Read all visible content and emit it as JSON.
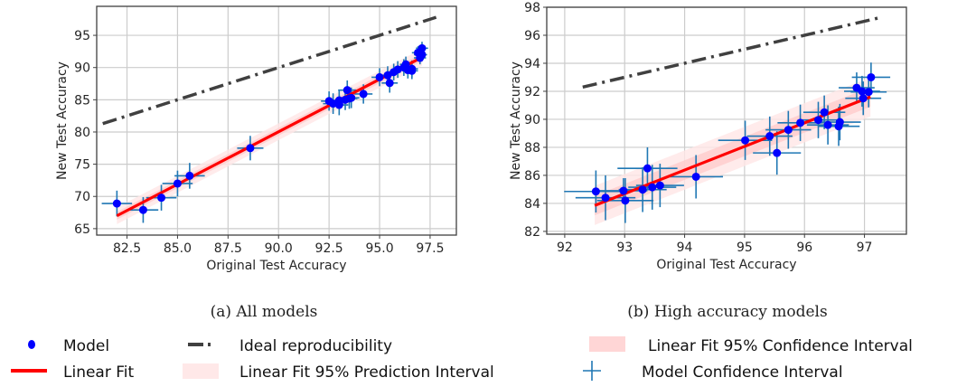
{
  "chart_data": [
    {
      "type": "scatter",
      "panel": "a",
      "caption": "(a) All models",
      "xlabel": "Original Test Accuracy",
      "ylabel": "New Test Accuracy",
      "xlim": [
        81.0,
        98.8
      ],
      "ylim": [
        64.0,
        99.5
      ],
      "xticks": [
        82.5,
        85.0,
        87.5,
        90.0,
        92.5,
        95.0,
        97.5
      ],
      "xtick_labels": [
        "82.5",
        "85.0",
        "87.5",
        "90.0",
        "92.5",
        "95.0",
        "97.5"
      ],
      "yticks": [
        65,
        70,
        75,
        80,
        85,
        90,
        95
      ],
      "ytick_labels": [
        "65",
        "70",
        "75",
        "80",
        "85",
        "90",
        "95"
      ],
      "grid": true,
      "ideal_line": {
        "x": [
          81.3,
          97.8
        ],
        "y": [
          81.3,
          97.8
        ]
      },
      "linear_fit": {
        "x": [
          82.0,
          97.1
        ],
        "y": [
          67.0,
          91.6
        ]
      },
      "prediction_band_halfwidth": 1.3,
      "confidence_band_halfwidth": 0.6,
      "points": [
        {
          "x": 82.0,
          "y": 68.9,
          "xerr": 0.75,
          "yerr": 2.0
        },
        {
          "x": 83.3,
          "y": 67.9,
          "xerr": 0.75,
          "yerr": 2.0
        },
        {
          "x": 84.2,
          "y": 69.8,
          "xerr": 0.75,
          "yerr": 2.0
        },
        {
          "x": 85.0,
          "y": 72.0,
          "xerr": 0.75,
          "yerr": 2.0
        },
        {
          "x": 85.6,
          "y": 73.2,
          "xerr": 0.75,
          "yerr": 2.0
        },
        {
          "x": 88.6,
          "y": 77.5,
          "xerr": 0.65,
          "yerr": 1.9
        },
        {
          "x": 92.5,
          "y": 84.8,
          "xerr": 0.4,
          "yerr": 1.5
        },
        {
          "x": 92.7,
          "y": 84.4,
          "xerr": 0.5,
          "yerr": 1.6
        },
        {
          "x": 93.0,
          "y": 84.9,
          "xerr": 0.45,
          "yerr": 1.5
        },
        {
          "x": 93.0,
          "y": 84.2,
          "xerr": 0.45,
          "yerr": 1.6
        },
        {
          "x": 93.3,
          "y": 85.0,
          "xerr": 0.4,
          "yerr": 1.6
        },
        {
          "x": 93.4,
          "y": 86.5,
          "xerr": 0.45,
          "yerr": 1.5
        },
        {
          "x": 93.5,
          "y": 85.2,
          "xerr": 0.4,
          "yerr": 1.6
        },
        {
          "x": 93.6,
          "y": 85.3,
          "xerr": 0.4,
          "yerr": 1.6
        },
        {
          "x": 94.2,
          "y": 85.9,
          "xerr": 0.45,
          "yerr": 1.5
        },
        {
          "x": 95.0,
          "y": 88.5,
          "xerr": 0.4,
          "yerr": 1.4
        },
        {
          "x": 95.4,
          "y": 88.8,
          "xerr": 0.35,
          "yerr": 1.4
        },
        {
          "x": 95.5,
          "y": 87.6,
          "xerr": 0.4,
          "yerr": 1.5
        },
        {
          "x": 95.7,
          "y": 89.3,
          "xerr": 0.35,
          "yerr": 1.3
        },
        {
          "x": 95.9,
          "y": 89.7,
          "xerr": 0.3,
          "yerr": 1.3
        },
        {
          "x": 96.2,
          "y": 90.0,
          "xerr": 0.3,
          "yerr": 1.3
        },
        {
          "x": 96.3,
          "y": 90.5,
          "xerr": 0.3,
          "yerr": 1.2
        },
        {
          "x": 96.4,
          "y": 89.6,
          "xerr": 0.3,
          "yerr": 1.3
        },
        {
          "x": 96.6,
          "y": 89.5,
          "xerr": 0.3,
          "yerr": 1.3
        },
        {
          "x": 96.6,
          "y": 89.8,
          "xerr": 0.3,
          "yerr": 1.3
        },
        {
          "x": 96.9,
          "y": 92.3,
          "xerr": 0.3,
          "yerr": 1.0
        },
        {
          "x": 97.0,
          "y": 92.0,
          "xerr": 0.3,
          "yerr": 1.0
        },
        {
          "x": 97.0,
          "y": 91.5,
          "xerr": 0.3,
          "yerr": 1.0
        },
        {
          "x": 97.1,
          "y": 92.0,
          "xerr": 0.25,
          "yerr": 1.0
        },
        {
          "x": 97.1,
          "y": 93.0,
          "xerr": 0.3,
          "yerr": 1.0
        }
      ]
    },
    {
      "type": "scatter",
      "panel": "b",
      "caption": "(b) High accuracy models",
      "xlabel": "Original Test Accuracy",
      "ylabel": "New Test Accuracy",
      "xlim": [
        91.7,
        97.7
      ],
      "ylim": [
        81.8,
        98.0
      ],
      "xticks": [
        92,
        93,
        94,
        95,
        96,
        97
      ],
      "xtick_labels": [
        "92",
        "93",
        "94",
        "95",
        "96",
        "97"
      ],
      "yticks": [
        82,
        84,
        86,
        88,
        90,
        92,
        94,
        96,
        98
      ],
      "ytick_labels": [
        "82",
        "84",
        "86",
        "88",
        "90",
        "92",
        "94",
        "96",
        "98"
      ],
      "grid": true,
      "ideal_line": {
        "x": [
          92.3,
          97.3
        ],
        "y": [
          92.3,
          97.3
        ]
      },
      "linear_fit": {
        "x": [
          92.5,
          97.1
        ],
        "y": [
          83.85,
          91.6
        ]
      },
      "prediction_band_halfwidth": 1.4,
      "confidence_band_halfwidth": 0.7,
      "points": [
        {
          "x": 92.52,
          "y": 84.85,
          "xerr": 0.53,
          "yerr": 1.5
        },
        {
          "x": 92.68,
          "y": 84.4,
          "xerr": 0.5,
          "yerr": 1.6
        },
        {
          "x": 92.98,
          "y": 84.9,
          "xerr": 0.4,
          "yerr": 0.9
        },
        {
          "x": 93.01,
          "y": 84.2,
          "xerr": 0.47,
          "yerr": 1.6
        },
        {
          "x": 93.3,
          "y": 84.98,
          "xerr": 0.4,
          "yerr": 1.6
        },
        {
          "x": 93.38,
          "y": 86.5,
          "xerr": 0.5,
          "yerr": 1.5
        },
        {
          "x": 93.46,
          "y": 85.15,
          "xerr": 0.4,
          "yerr": 1.6
        },
        {
          "x": 93.59,
          "y": 85.28,
          "xerr": 0.4,
          "yerr": 1.55
        },
        {
          "x": 94.19,
          "y": 85.9,
          "xerr": 0.45,
          "yerr": 1.55
        },
        {
          "x": 95.01,
          "y": 88.5,
          "xerr": 0.45,
          "yerr": 1.4
        },
        {
          "x": 95.42,
          "y": 88.8,
          "xerr": 0.38,
          "yerr": 1.4
        },
        {
          "x": 95.54,
          "y": 87.6,
          "xerr": 0.4,
          "yerr": 1.55
        },
        {
          "x": 95.73,
          "y": 89.25,
          "xerr": 0.38,
          "yerr": 1.35
        },
        {
          "x": 95.93,
          "y": 89.75,
          "xerr": 0.38,
          "yerr": 1.3
        },
        {
          "x": 96.23,
          "y": 89.95,
          "xerr": 0.33,
          "yerr": 1.3
        },
        {
          "x": 96.33,
          "y": 90.5,
          "xerr": 0.35,
          "yerr": 1.2
        },
        {
          "x": 96.39,
          "y": 89.6,
          "xerr": 0.35,
          "yerr": 1.4
        },
        {
          "x": 96.57,
          "y": 89.5,
          "xerr": 0.35,
          "yerr": 1.4
        },
        {
          "x": 96.59,
          "y": 89.8,
          "xerr": 0.35,
          "yerr": 1.3
        },
        {
          "x": 96.87,
          "y": 92.25,
          "xerr": 0.3,
          "yerr": 1.1
        },
        {
          "x": 96.96,
          "y": 92.0,
          "xerr": 0.3,
          "yerr": 1.1
        },
        {
          "x": 96.98,
          "y": 91.5,
          "xerr": 0.3,
          "yerr": 1.2
        },
        {
          "x": 97.07,
          "y": 91.95,
          "xerr": 0.3,
          "yerr": 1.1
        },
        {
          "x": 97.11,
          "y": 93.0,
          "xerr": 0.32,
          "yerr": 1.05
        }
      ]
    }
  ],
  "legend": {
    "items": [
      {
        "key": "model",
        "label": "Model"
      },
      {
        "key": "ideal",
        "label": "Ideal reproducibility"
      },
      {
        "key": "conf_band",
        "label": "Linear Fit 95% Confidence Interval"
      },
      {
        "key": "linear_fit",
        "label": "Linear Fit"
      },
      {
        "key": "pred_band",
        "label": "Linear Fit 95% Prediction Interval"
      },
      {
        "key": "model_ci",
        "label": "Model Confidence Interval"
      }
    ]
  },
  "colors": {
    "model_point": "#0000ff",
    "error_bar": "#1f77b4",
    "linear_fit": "#ff0000",
    "ideal_line": "#404040",
    "prediction_band": "#ffe6e6",
    "confidence_band": "#ffcccc",
    "grid": "#cccccc",
    "axes": "#404040"
  }
}
